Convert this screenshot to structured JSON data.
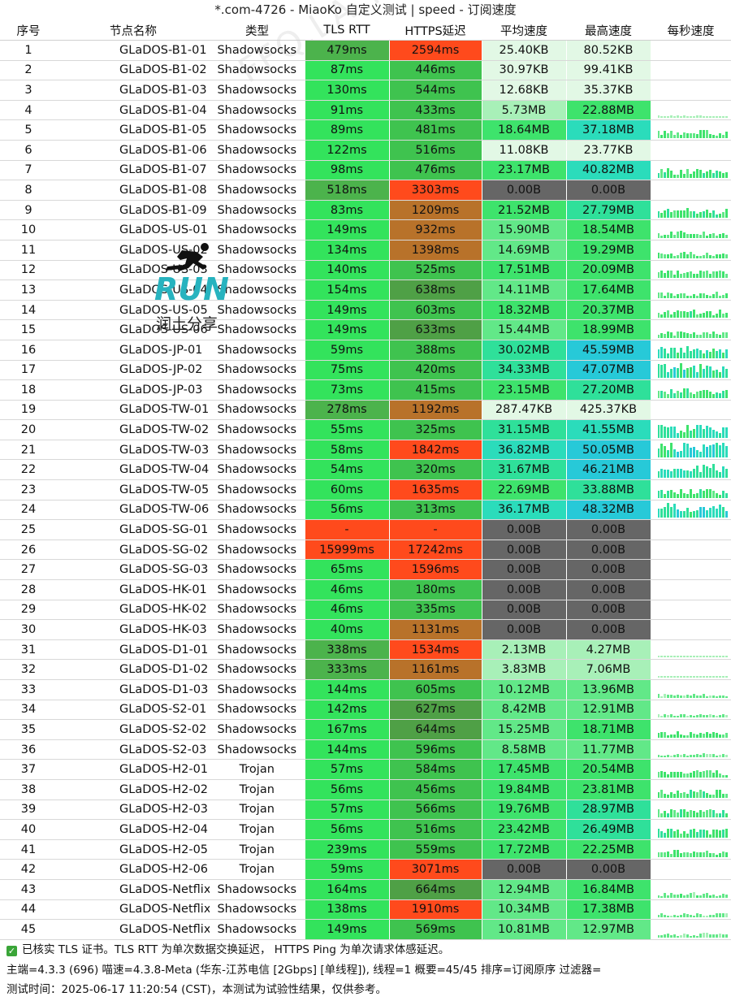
{
  "title": "*.com-4726 - MiaoKo 自定义测试 | speed - 订阅速度",
  "headers": [
    "序号",
    "节点名称",
    "类型",
    "TLS RTT",
    "HTTPS延迟",
    "平均速度",
    "最高速度",
    "每秒速度"
  ],
  "watermark": "FFQ.LA Test Center",
  "logo": {
    "text": "RUN",
    "subtitle": "润土分享",
    "icon": "running-man-icon"
  },
  "rows": [
    {
      "idx": "1",
      "name": "GLaDOS-B1-01",
      "type": "Shadowsocks",
      "tls": "479ms",
      "https": "2594ms",
      "avg": "25.40KB",
      "max": "80.52KB"
    },
    {
      "idx": "2",
      "name": "GLaDOS-B1-02",
      "type": "Shadowsocks",
      "tls": "87ms",
      "https": "446ms",
      "avg": "30.97KB",
      "max": "99.41KB"
    },
    {
      "idx": "3",
      "name": "GLaDOS-B1-03",
      "type": "Shadowsocks",
      "tls": "130ms",
      "https": "544ms",
      "avg": "12.68KB",
      "max": "35.37KB"
    },
    {
      "idx": "4",
      "name": "GLaDOS-B1-04",
      "type": "Shadowsocks",
      "tls": "91ms",
      "https": "433ms",
      "avg": "5.73MB",
      "max": "22.88MB"
    },
    {
      "idx": "5",
      "name": "GLaDOS-B1-05",
      "type": "Shadowsocks",
      "tls": "89ms",
      "https": "481ms",
      "avg": "18.64MB",
      "max": "37.18MB"
    },
    {
      "idx": "6",
      "name": "GLaDOS-B1-06",
      "type": "Shadowsocks",
      "tls": "122ms",
      "https": "516ms",
      "avg": "11.08KB",
      "max": "23.77KB"
    },
    {
      "idx": "7",
      "name": "GLaDOS-B1-07",
      "type": "Shadowsocks",
      "tls": "98ms",
      "https": "476ms",
      "avg": "23.17MB",
      "max": "40.82MB"
    },
    {
      "idx": "8",
      "name": "GLaDOS-B1-08",
      "type": "Shadowsocks",
      "tls": "518ms",
      "https": "3303ms",
      "avg": "0.00B",
      "max": "0.00B"
    },
    {
      "idx": "9",
      "name": "GLaDOS-B1-09",
      "type": "Shadowsocks",
      "tls": "83ms",
      "https": "1209ms",
      "avg": "21.52MB",
      "max": "27.79MB"
    },
    {
      "idx": "10",
      "name": "GLaDOS-US-01",
      "type": "Shadowsocks",
      "tls": "149ms",
      "https": "932ms",
      "avg": "15.90MB",
      "max": "18.54MB"
    },
    {
      "idx": "11",
      "name": "GLaDOS-US-02",
      "type": "Shadowsocks",
      "tls": "134ms",
      "https": "1398ms",
      "avg": "14.69MB",
      "max": "19.29MB"
    },
    {
      "idx": "12",
      "name": "GLaDOS-US-03",
      "type": "Shadowsocks",
      "tls": "140ms",
      "https": "525ms",
      "avg": "17.51MB",
      "max": "20.09MB"
    },
    {
      "idx": "13",
      "name": "GLaDOS-US-04",
      "type": "Shadowsocks",
      "tls": "154ms",
      "https": "638ms",
      "avg": "14.11MB",
      "max": "17.64MB"
    },
    {
      "idx": "14",
      "name": "GLaDOS-US-05",
      "type": "Shadowsocks",
      "tls": "149ms",
      "https": "603ms",
      "avg": "18.32MB",
      "max": "20.37MB"
    },
    {
      "idx": "15",
      "name": "GLaDOS-US-06",
      "type": "Shadowsocks",
      "tls": "149ms",
      "https": "633ms",
      "avg": "15.44MB",
      "max": "18.99MB"
    },
    {
      "idx": "16",
      "name": "GLaDOS-JP-01",
      "type": "Shadowsocks",
      "tls": "59ms",
      "https": "388ms",
      "avg": "30.02MB",
      "max": "45.59MB"
    },
    {
      "idx": "17",
      "name": "GLaDOS-JP-02",
      "type": "Shadowsocks",
      "tls": "75ms",
      "https": "420ms",
      "avg": "34.33MB",
      "max": "47.07MB"
    },
    {
      "idx": "18",
      "name": "GLaDOS-JP-03",
      "type": "Shadowsocks",
      "tls": "73ms",
      "https": "415ms",
      "avg": "23.15MB",
      "max": "27.20MB"
    },
    {
      "idx": "19",
      "name": "GLaDOS-TW-01",
      "type": "Shadowsocks",
      "tls": "278ms",
      "https": "1192ms",
      "avg": "287.47KB",
      "max": "425.37KB"
    },
    {
      "idx": "20",
      "name": "GLaDOS-TW-02",
      "type": "Shadowsocks",
      "tls": "55ms",
      "https": "325ms",
      "avg": "31.15MB",
      "max": "41.55MB"
    },
    {
      "idx": "21",
      "name": "GLaDOS-TW-03",
      "type": "Shadowsocks",
      "tls": "58ms",
      "https": "1842ms",
      "avg": "36.82MB",
      "max": "50.05MB"
    },
    {
      "idx": "22",
      "name": "GLaDOS-TW-04",
      "type": "Shadowsocks",
      "tls": "54ms",
      "https": "320ms",
      "avg": "31.67MB",
      "max": "46.21MB"
    },
    {
      "idx": "23",
      "name": "GLaDOS-TW-05",
      "type": "Shadowsocks",
      "tls": "60ms",
      "https": "1635ms",
      "avg": "22.69MB",
      "max": "33.88MB"
    },
    {
      "idx": "24",
      "name": "GLaDOS-TW-06",
      "type": "Shadowsocks",
      "tls": "56ms",
      "https": "313ms",
      "avg": "36.17MB",
      "max": "48.32MB"
    },
    {
      "idx": "25",
      "name": "GLaDOS-SG-01",
      "type": "Shadowsocks",
      "tls": "-",
      "https": "-",
      "avg": "0.00B",
      "max": "0.00B"
    },
    {
      "idx": "26",
      "name": "GLaDOS-SG-02",
      "type": "Shadowsocks",
      "tls": "15999ms",
      "https": "17242ms",
      "avg": "0.00B",
      "max": "0.00B"
    },
    {
      "idx": "27",
      "name": "GLaDOS-SG-03",
      "type": "Shadowsocks",
      "tls": "65ms",
      "https": "1596ms",
      "avg": "0.00B",
      "max": "0.00B"
    },
    {
      "idx": "28",
      "name": "GLaDOS-HK-01",
      "type": "Shadowsocks",
      "tls": "46ms",
      "https": "180ms",
      "avg": "0.00B",
      "max": "0.00B"
    },
    {
      "idx": "29",
      "name": "GLaDOS-HK-02",
      "type": "Shadowsocks",
      "tls": "46ms",
      "https": "335ms",
      "avg": "0.00B",
      "max": "0.00B"
    },
    {
      "idx": "30",
      "name": "GLaDOS-HK-03",
      "type": "Shadowsocks",
      "tls": "40ms",
      "https": "1131ms",
      "avg": "0.00B",
      "max": "0.00B"
    },
    {
      "idx": "31",
      "name": "GLaDOS-D1-01",
      "type": "Shadowsocks",
      "tls": "338ms",
      "https": "1534ms",
      "avg": "2.13MB",
      "max": "4.27MB"
    },
    {
      "idx": "32",
      "name": "GLaDOS-D1-02",
      "type": "Shadowsocks",
      "tls": "333ms",
      "https": "1161ms",
      "avg": "3.83MB",
      "max": "7.06MB"
    },
    {
      "idx": "33",
      "name": "GLaDOS-D1-03",
      "type": "Shadowsocks",
      "tls": "144ms",
      "https": "605ms",
      "avg": "10.12MB",
      "max": "13.96MB"
    },
    {
      "idx": "34",
      "name": "GLaDOS-S2-01",
      "type": "Shadowsocks",
      "tls": "142ms",
      "https": "627ms",
      "avg": "8.42MB",
      "max": "12.91MB"
    },
    {
      "idx": "35",
      "name": "GLaDOS-S2-02",
      "type": "Shadowsocks",
      "tls": "167ms",
      "https": "644ms",
      "avg": "15.25MB",
      "max": "18.71MB"
    },
    {
      "idx": "36",
      "name": "GLaDOS-S2-03",
      "type": "Shadowsocks",
      "tls": "144ms",
      "https": "596ms",
      "avg": "8.58MB",
      "max": "11.77MB"
    },
    {
      "idx": "37",
      "name": "GLaDOS-H2-01",
      "type": "Trojan",
      "tls": "57ms",
      "https": "584ms",
      "avg": "17.45MB",
      "max": "20.54MB"
    },
    {
      "idx": "38",
      "name": "GLaDOS-H2-02",
      "type": "Trojan",
      "tls": "56ms",
      "https": "456ms",
      "avg": "19.84MB",
      "max": "23.81MB"
    },
    {
      "idx": "39",
      "name": "GLaDOS-H2-03",
      "type": "Trojan",
      "tls": "57ms",
      "https": "566ms",
      "avg": "19.76MB",
      "max": "28.97MB"
    },
    {
      "idx": "40",
      "name": "GLaDOS-H2-04",
      "type": "Trojan",
      "tls": "56ms",
      "https": "516ms",
      "avg": "23.42MB",
      "max": "26.49MB"
    },
    {
      "idx": "41",
      "name": "GLaDOS-H2-05",
      "type": "Trojan",
      "tls": "239ms",
      "https": "559ms",
      "avg": "17.72MB",
      "max": "22.25MB"
    },
    {
      "idx": "42",
      "name": "GLaDOS-H2-06",
      "type": "Trojan",
      "tls": "59ms",
      "https": "3071ms",
      "avg": "0.00B",
      "max": "0.00B"
    },
    {
      "idx": "43",
      "name": "GLaDOS-Netflix-01",
      "type": "Shadowsocks",
      "tls": "164ms",
      "https": "664ms",
      "avg": "12.94MB",
      "max": "16.84MB"
    },
    {
      "idx": "44",
      "name": "GLaDOS-Netflix-02",
      "type": "Shadowsocks",
      "tls": "138ms",
      "https": "1910ms",
      "avg": "10.34MB",
      "max": "17.38MB"
    },
    {
      "idx": "45",
      "name": "GLaDOS-Netflix-03",
      "type": "Shadowsocks",
      "tls": "149ms",
      "https": "569ms",
      "avg": "10.81MB",
      "max": "12.97MB"
    }
  ],
  "footer": {
    "line1": "已核实 TLS 证书。TLS RTT 为单次数据交换延迟， HTTPS Ping 为单次请求体感延迟。",
    "line2": "主端=4.3.3 (696) 喵速=4.3.8-Meta (华东-江苏电信 [2Gbps] [单线程]), 线程=1 概要=45/45 排序=订阅原序 过滤器=",
    "line3": "测试时间：2025-06-17 11:20:54 (CST)，本测试为试验性结果，仅供参考。"
  },
  "colors": {
    "tls_good": "#33e35c",
    "tls_mid": "#4fbf4f",
    "https_bad": "#ff4a1c",
    "https_warn": "#b8722a",
    "speed_zero": "#666666",
    "speed_high": "#2ad9b4",
    "check_green": "#3aa538"
  }
}
